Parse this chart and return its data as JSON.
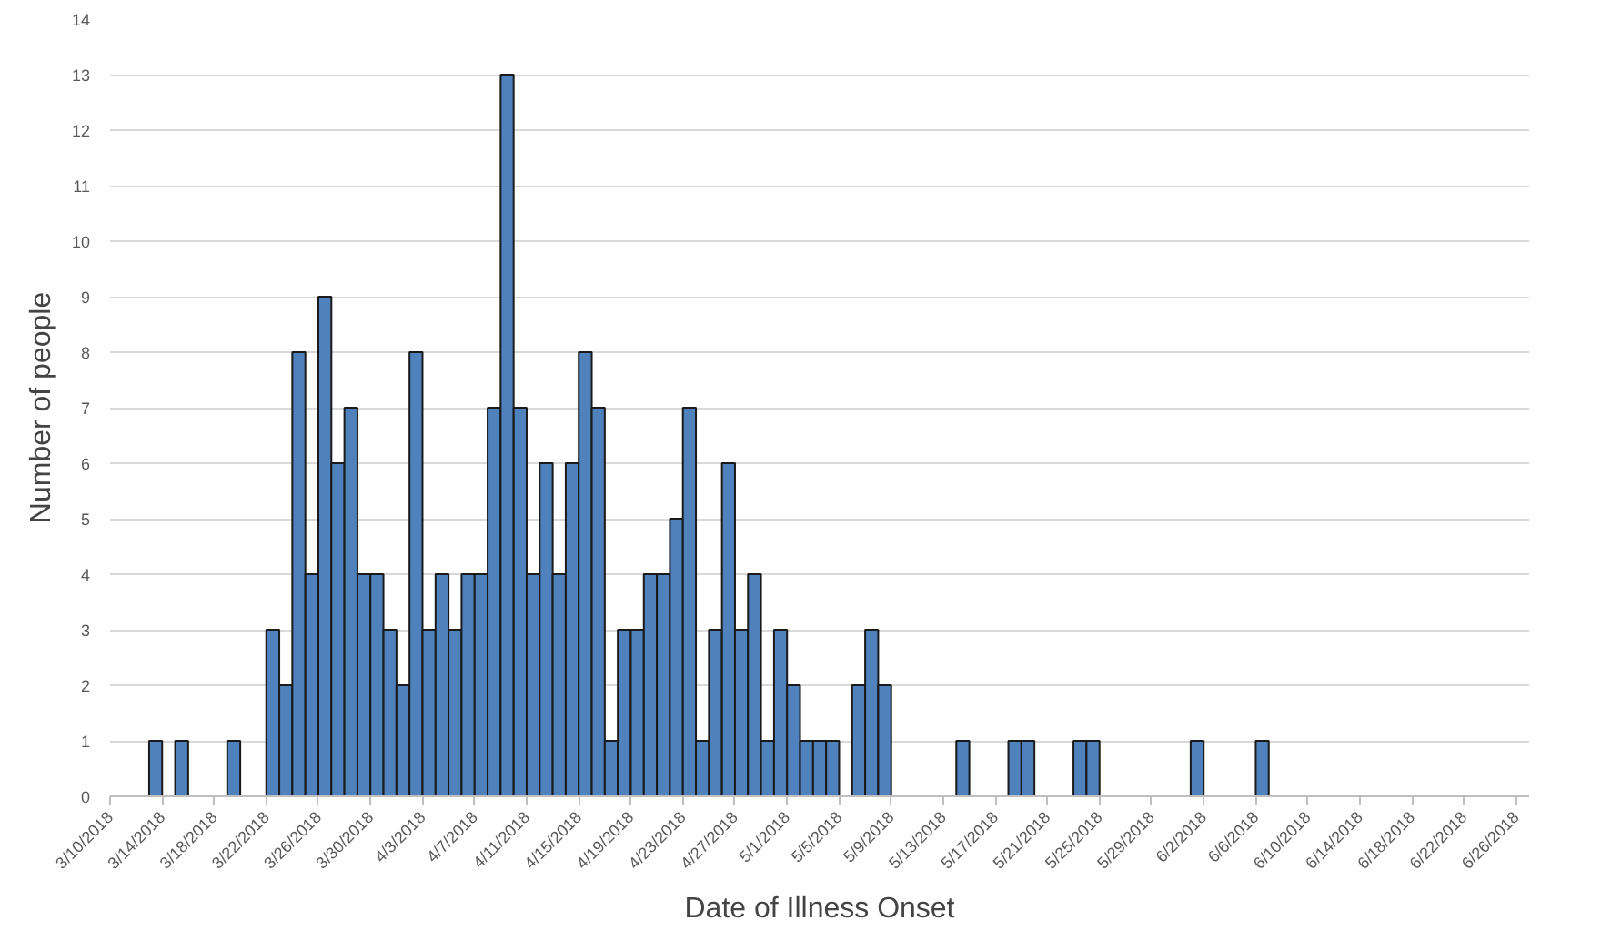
{
  "chart_data": {
    "type": "bar",
    "xlabel": "Date of Illness Onset",
    "ylabel": "Number of people",
    "x": [
      "2018-03-13",
      "2018-03-15",
      "2018-03-19",
      "2018-03-22",
      "2018-03-23",
      "2018-03-24",
      "2018-03-25",
      "2018-03-26",
      "2018-03-27",
      "2018-03-28",
      "2018-03-29",
      "2018-03-30",
      "2018-03-31",
      "2018-04-01",
      "2018-04-02",
      "2018-04-03",
      "2018-04-04",
      "2018-04-05",
      "2018-04-06",
      "2018-04-07",
      "2018-04-08",
      "2018-04-09",
      "2018-04-10",
      "2018-04-11",
      "2018-04-12",
      "2018-04-13",
      "2018-04-14",
      "2018-04-15",
      "2018-04-16",
      "2018-04-17",
      "2018-04-18",
      "2018-04-19",
      "2018-04-20",
      "2018-04-21",
      "2018-04-22",
      "2018-04-23",
      "2018-04-24",
      "2018-04-25",
      "2018-04-26",
      "2018-04-27",
      "2018-04-28",
      "2018-04-29",
      "2018-04-30",
      "2018-05-01",
      "2018-05-02",
      "2018-05-03",
      "2018-05-04",
      "2018-05-06",
      "2018-05-07",
      "2018-05-08",
      "2018-05-14",
      "2018-05-18",
      "2018-05-19",
      "2018-05-23",
      "2018-05-24",
      "2018-06-01",
      "2018-06-06"
    ],
    "values": [
      1,
      1,
      1,
      3,
      2,
      8,
      4,
      9,
      6,
      7,
      4,
      4,
      3,
      2,
      8,
      3,
      4,
      3,
      4,
      4,
      7,
      13,
      7,
      4,
      6,
      4,
      6,
      8,
      7,
      1,
      3,
      3,
      4,
      4,
      5,
      7,
      1,
      3,
      6,
      3,
      4,
      1,
      3,
      2,
      1,
      1,
      1,
      2,
      3,
      2,
      1,
      1,
      1,
      1,
      1,
      1,
      1
    ],
    "color": "#4f81bd",
    "xlim": [
      "2018-03-10",
      "2018-06-27"
    ],
    "xticks": [
      {
        "value": "2018-03-10",
        "label": "3/10/2018"
      },
      {
        "value": "2018-03-14",
        "label": "3/14/2018"
      },
      {
        "value": "2018-03-18",
        "label": "3/18/2018"
      },
      {
        "value": "2018-03-22",
        "label": "3/22/2018"
      },
      {
        "value": "2018-03-26",
        "label": "3/26/2018"
      },
      {
        "value": "2018-03-30",
        "label": "3/30/2018"
      },
      {
        "value": "2018-04-03",
        "label": "4/3/2018"
      },
      {
        "value": "2018-04-07",
        "label": "4/7/2018"
      },
      {
        "value": "2018-04-11",
        "label": "4/11/2018"
      },
      {
        "value": "2018-04-15",
        "label": "4/15/2018"
      },
      {
        "value": "2018-04-19",
        "label": "4/19/2018"
      },
      {
        "value": "2018-04-23",
        "label": "4/23/2018"
      },
      {
        "value": "2018-04-27",
        "label": "4/27/2018"
      },
      {
        "value": "2018-05-01",
        "label": "5/1/2018"
      },
      {
        "value": "2018-05-05",
        "label": "5/5/2018"
      },
      {
        "value": "2018-05-09",
        "label": "5/9/2018"
      },
      {
        "value": "2018-05-13",
        "label": "5/13/2018"
      },
      {
        "value": "2018-05-17",
        "label": "5/17/2018"
      },
      {
        "value": "2018-05-21",
        "label": "5/21/2018"
      },
      {
        "value": "2018-05-25",
        "label": "5/25/2018"
      },
      {
        "value": "2018-05-29",
        "label": "5/29/2018"
      },
      {
        "value": "2018-06-02",
        "label": "6/2/2018"
      },
      {
        "value": "2018-06-06",
        "label": "6/6/2018"
      },
      {
        "value": "2018-06-10",
        "label": "6/10/2018"
      },
      {
        "value": "2018-06-14",
        "label": "6/14/2018"
      },
      {
        "value": "2018-06-18",
        "label": "6/18/2018"
      },
      {
        "value": "2018-06-22",
        "label": "6/22/2018"
      },
      {
        "value": "2018-06-26",
        "label": "6/26/2018"
      }
    ],
    "ylim": [
      0,
      14
    ],
    "yticks": [
      0,
      1,
      2,
      3,
      4,
      5,
      6,
      7,
      8,
      9,
      10,
      11,
      12,
      13,
      14
    ],
    "grid": "y"
  }
}
